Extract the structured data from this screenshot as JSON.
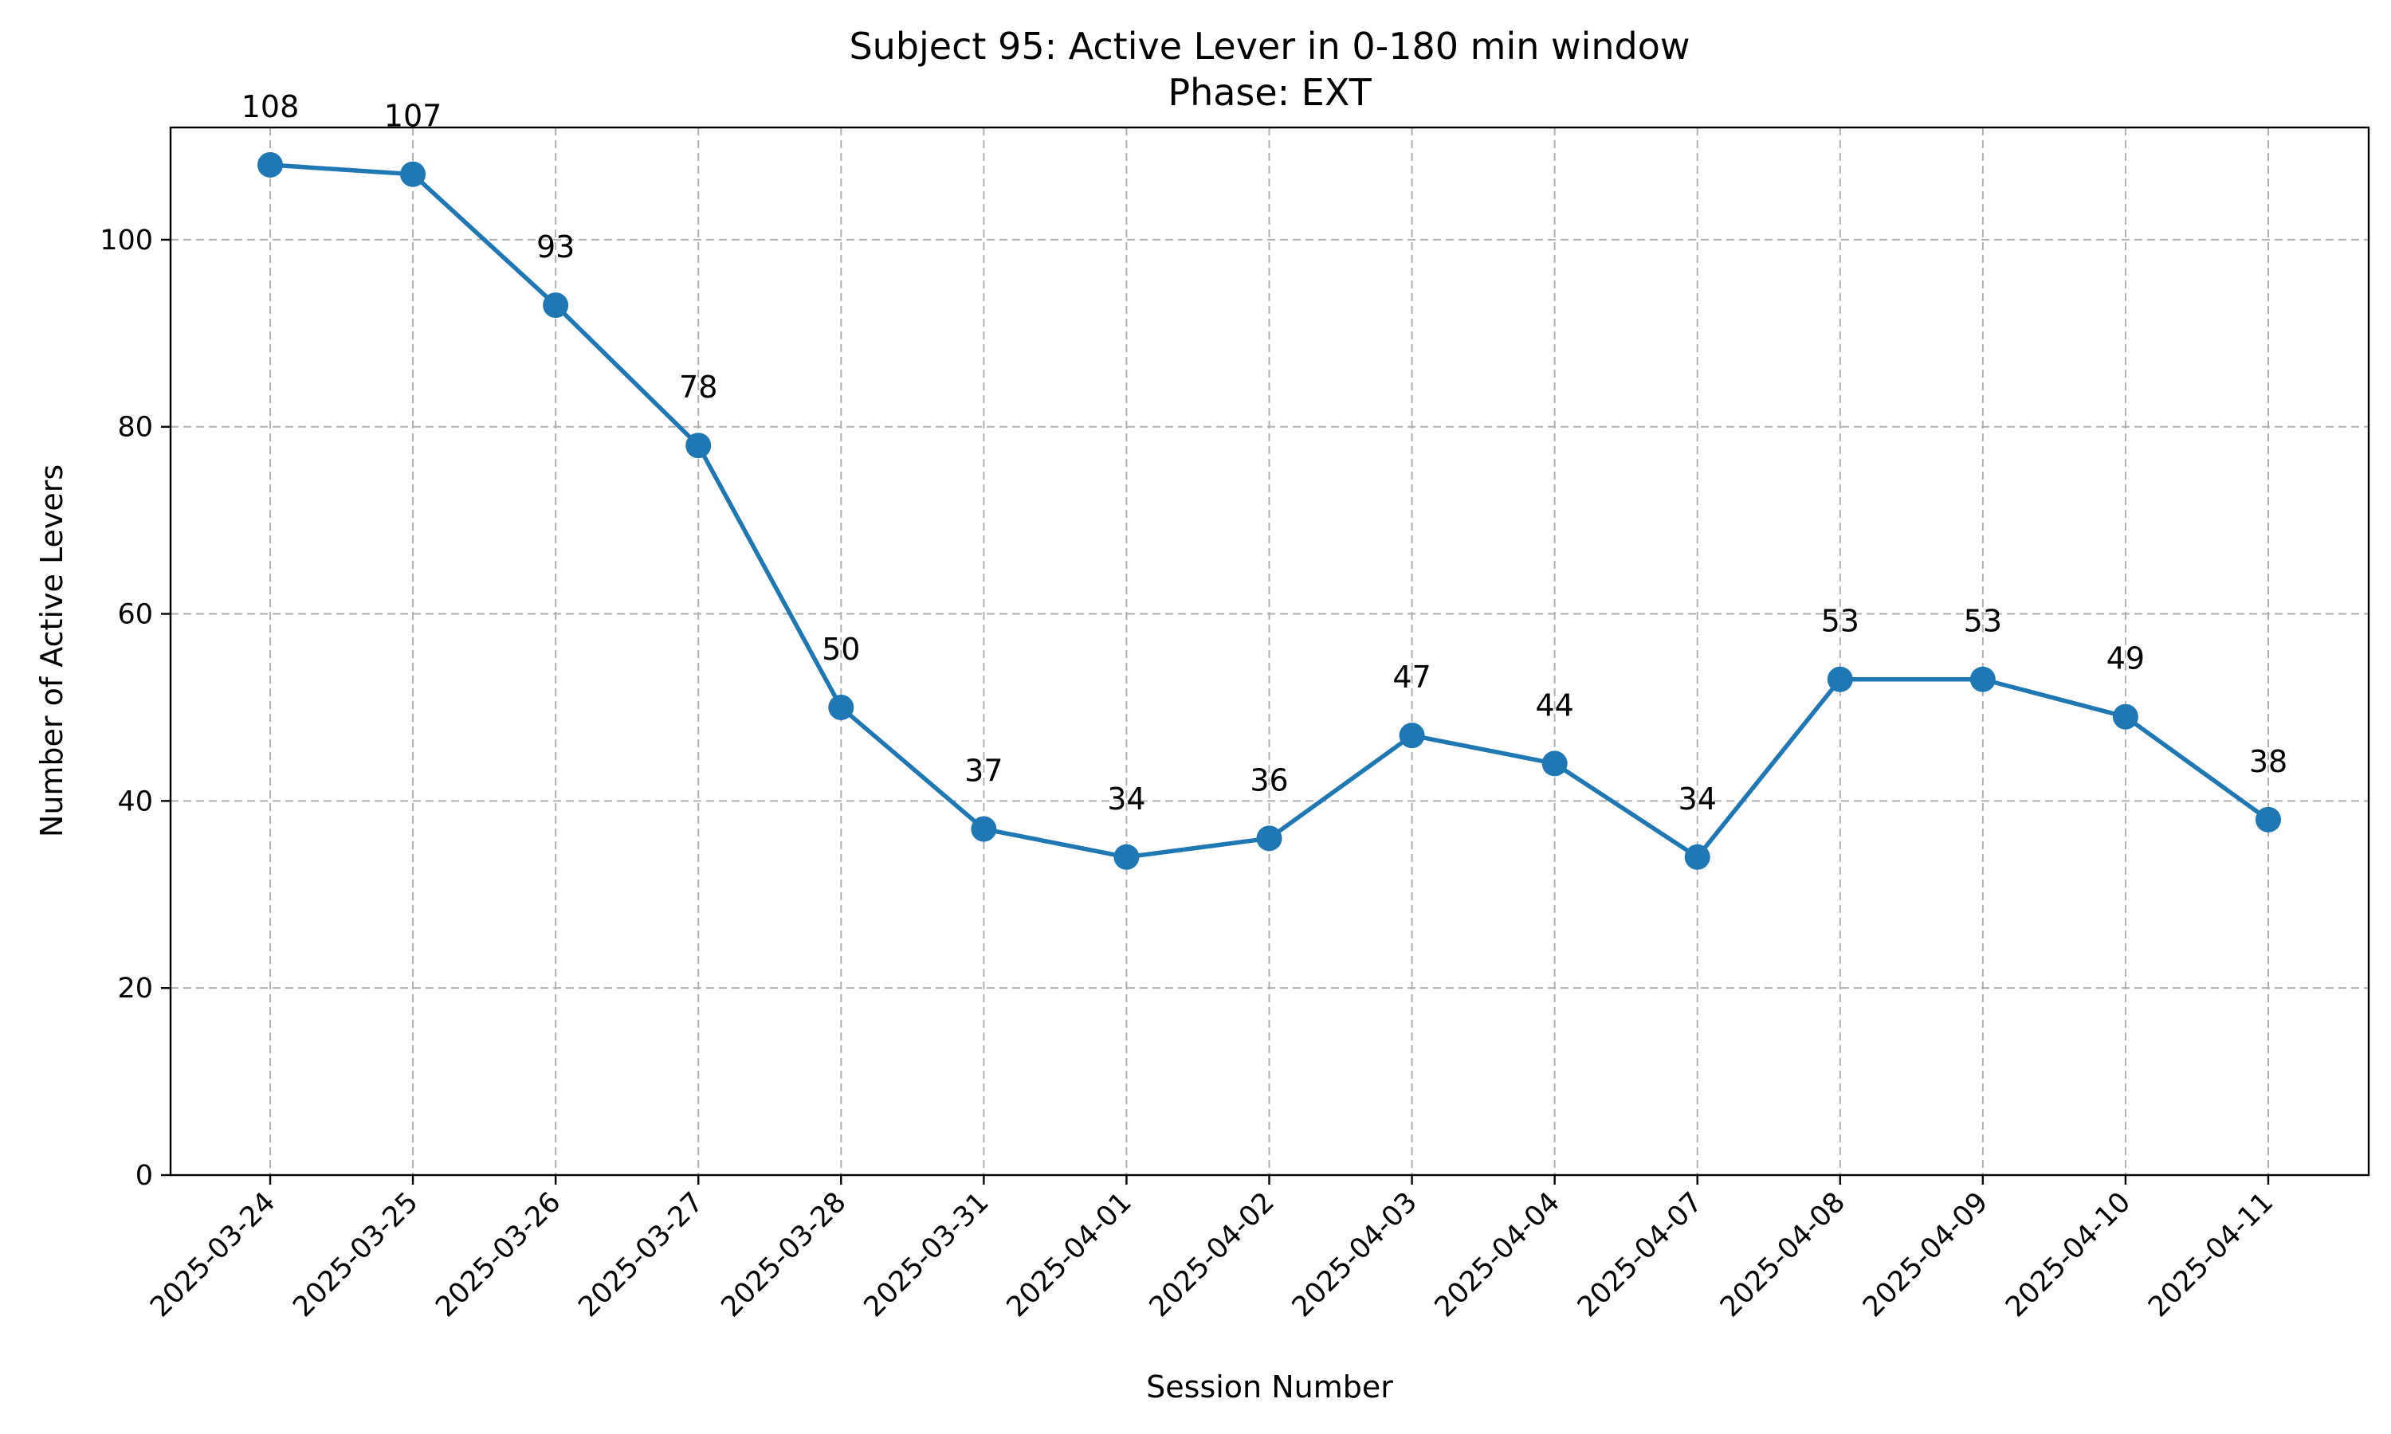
{
  "chart_data": {
    "type": "line",
    "title": "Subject 95: Active Lever in 0-180 min window",
    "subtitle": "Phase: EXT",
    "xlabel": "Session Number",
    "ylabel": "Number of Active Levers",
    "categories": [
      "2025-03-24",
      "2025-03-25",
      "2025-03-26",
      "2025-03-27",
      "2025-03-28",
      "2025-03-31",
      "2025-04-01",
      "2025-04-02",
      "2025-04-03",
      "2025-04-04",
      "2025-04-07",
      "2025-04-08",
      "2025-04-09",
      "2025-04-10",
      "2025-04-11"
    ],
    "values": [
      108,
      107,
      93,
      78,
      50,
      37,
      34,
      36,
      47,
      44,
      34,
      53,
      53,
      49,
      38
    ],
    "data_labels": [
      "108",
      "107",
      "93",
      "78",
      "50",
      "37",
      "34",
      "36",
      "47",
      "44",
      "34",
      "53",
      "53",
      "49",
      "38"
    ],
    "ylim": [
      0,
      112
    ],
    "yticks": [
      0,
      20,
      40,
      60,
      80,
      100
    ],
    "ytick_labels": [
      "0",
      "20",
      "40",
      "60",
      "80",
      "100"
    ],
    "grid": true,
    "line_color": "#1f77b4",
    "marker": "circle"
  }
}
